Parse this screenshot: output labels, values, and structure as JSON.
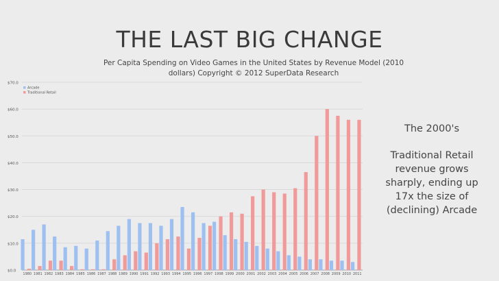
{
  "slide": {
    "title": "THE LAST BIG CHANGE",
    "subtitle": "Per Capita Spending on Video Games in the United States by Revenue Model (2010 dollars) Copyright © 2012 SuperData Research",
    "note_heading": "The 2000's",
    "note_lines": [
      "Traditional Retail",
      "revenue grows",
      "sharply, ending up",
      "17x the size of",
      "(declining) Arcade"
    ]
  },
  "chart_data": {
    "type": "bar",
    "categories": [
      "1980",
      "1981",
      "1982",
      "1983",
      "1984",
      "1985",
      "1986",
      "1987",
      "1988",
      "1989",
      "1990",
      "1991",
      "1992",
      "1993",
      "1994",
      "1995",
      "1996",
      "1997",
      "1998",
      "1999",
      "2000",
      "2001",
      "2002",
      "2003",
      "2004",
      "2005",
      "2006",
      "2007",
      "2008",
      "2009",
      "2010",
      "2011"
    ],
    "series": [
      {
        "name": "Arcade",
        "color": "#9ec0f0",
        "values": [
          11.5,
          15,
          17,
          12.5,
          8.5,
          9,
          8,
          11,
          14.5,
          16.5,
          19,
          17.5,
          17.5,
          16.5,
          19,
          23.5,
          21.5,
          17.5,
          18,
          13,
          11.5,
          10.5,
          9,
          8,
          7,
          5.5,
          5,
          4,
          4,
          3.5,
          3.5,
          3
        ]
      },
      {
        "name": "Traditional Retail",
        "color": "#f09a9a",
        "values": [
          0.5,
          1.5,
          3.5,
          3.5,
          1.5,
          0.3,
          0.3,
          0.3,
          4,
          5.5,
          7,
          6.5,
          10,
          11.5,
          12.5,
          8,
          12,
          16.5,
          20,
          21.5,
          21,
          27.5,
          30,
          29,
          28.5,
          30.5,
          36.5,
          50,
          60,
          57.5,
          56,
          56
        ]
      }
    ],
    "y_ticks": [
      "$0.0",
      "$10.0",
      "$20.0",
      "$30.0",
      "$40.0",
      "$50.0",
      "$60.0",
      "$70.0"
    ],
    "ylim": [
      0,
      70
    ],
    "legend": "top-left",
    "grid": true
  }
}
